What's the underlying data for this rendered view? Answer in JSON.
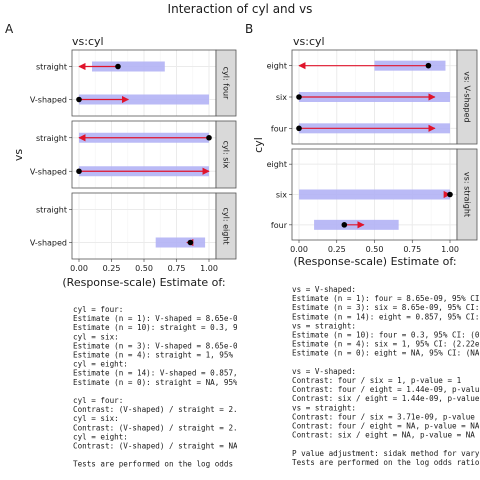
{
  "title": "Interaction of cyl and vs",
  "chart_data": [
    {
      "type": "scatter",
      "panel_tag": "A",
      "by_label": "vs:cyl",
      "facet_dir": "rows",
      "xlabel": "(Response-scale) Estimate of:",
      "ylabel": "vs",
      "xlim": [
        0,
        1
      ],
      "xticks": [
        0,
        0.25,
        0.5,
        0.75,
        1
      ],
      "xtick_labels": [
        "0.00",
        "0.25",
        "0.50",
        "0.75",
        "1.00"
      ],
      "grid": true,
      "facets": [
        {
          "strip": "cyl: four",
          "levels": [
            "V-shaped",
            "straight"
          ],
          "estimates": [
            {
              "level": "straight",
              "est": 0.3,
              "ci": [
                0.1,
                0.66
              ]
            },
            {
              "level": "V-shaped",
              "est": 0.0,
              "ci": [
                0.0,
                1.0
              ]
            }
          ],
          "arrows": [
            {
              "level": "straight",
              "from": 0.3,
              "to": 0.0
            },
            {
              "level": "V-shaped",
              "from": 0.0,
              "to": 0.38
            }
          ]
        },
        {
          "strip": "cyl: six",
          "levels": [
            "V-shaped",
            "straight"
          ],
          "estimates": [
            {
              "level": "straight",
              "est": 1.0,
              "ci": [
                0.0,
                1.0
              ]
            },
            {
              "level": "V-shaped",
              "est": 0.0,
              "ci": [
                0.0,
                1.0
              ]
            }
          ],
          "arrows": [
            {
              "level": "straight",
              "from": 1.0,
              "to": 0.0
            },
            {
              "level": "V-shaped",
              "from": 0.0,
              "to": 1.0
            }
          ]
        },
        {
          "strip": "cyl: eight",
          "levels": [
            "V-shaped",
            "straight"
          ],
          "estimates": [
            {
              "level": "V-shaped",
              "est": 0.857,
              "ci": [
                0.59,
                0.97
              ]
            }
          ],
          "arrows": [
            {
              "level": "V-shaped",
              "from": 0.857,
              "to": 0.83
            }
          ]
        }
      ]
    },
    {
      "type": "scatter",
      "panel_tag": "B",
      "by_label": "vs:cyl",
      "facet_dir": "cols",
      "xlabel": "(Response-scale) Estimate of:",
      "ylabel": "cyl",
      "xlim": [
        0,
        1
      ],
      "xticks": [
        0,
        0.25,
        0.5,
        0.75,
        1
      ],
      "xtick_labels": [
        "0.00",
        "0.25",
        "0.50",
        "0.75",
        "1.00"
      ],
      "grid": true,
      "facets": [
        {
          "strip": "vs: V-shaped",
          "levels": [
            "four",
            "six",
            "eight"
          ],
          "estimates": [
            {
              "level": "eight",
              "est": 0.857,
              "ci": [
                0.5,
                0.97
              ]
            },
            {
              "level": "six",
              "est": 0.0,
              "ci": [
                0.0,
                1.0
              ]
            },
            {
              "level": "four",
              "est": 0.0,
              "ci": [
                0.0,
                1.0
              ]
            }
          ],
          "arrows": [
            {
              "level": "eight",
              "from": 0.857,
              "to": 0.0
            },
            {
              "level": "six",
              "from": 0.0,
              "to": 0.9
            },
            {
              "level": "four",
              "from": 0.0,
              "to": 0.9
            }
          ]
        },
        {
          "strip": "vs: straight",
          "levels": [
            "four",
            "six",
            "eight"
          ],
          "estimates": [
            {
              "level": "six",
              "est": 1.0,
              "ci": [
                0.0,
                1.0
              ]
            },
            {
              "level": "four",
              "est": 0.3,
              "ci": [
                0.1,
                0.66
              ]
            }
          ],
          "arrows": [
            {
              "level": "six",
              "from": 1.0,
              "to": 1.0
            },
            {
              "level": "four",
              "from": 0.3,
              "to": 0.43
            }
          ]
        }
      ]
    }
  ],
  "text_a": [
    "cyl = four:",
    "Estimate (n = 1): V-shaped = 8.65e-09, 95",
    "Estimate (n = 10): straight = 0.3, 95% CI:",
    "cyl = six:",
    "Estimate (n = 3): V-shaped = 8.65e-09, 95",
    "Estimate (n = 4): straight = 1, 95% CI: (2.2",
    "cyl = eight:",
    "Estimate (n = 14): V-shaped = 0.857, 95% C",
    "Estimate (n = 0): straight = NA, 95% CI: (N",
    "",
    "cyl = four:",
    "Contrast: (V-shaped) / straight = 2.02e-08,",
    "cyl = six:",
    "Contrast: (V-shaped) / straight = 2.22e-08,",
    "cyl = eight:",
    "Contrast: (V-shaped) / straight = NA, p-valu",
    "",
    "Tests are performed on the log odds ratio s"
  ],
  "text_b": [
    "vs = V-shaped:",
    "Estimate (n = 1): four = 8.65e-09, 95% CI: (0",
    "Estimate (n = 3): six = 8.65e-09, 95% CI: (0,",
    "Estimate (n = 14): eight = 0.857, 95% CI: (0.5",
    "vs = straight:",
    "Estimate (n = 10): four = 0.3, 95% CI: (0.0",
    "Estimate (n = 4): six = 1, 95% CI: (2.22e-1",
    "Estimate (n = 0): eight = NA, 95% CI: (NA,",
    "",
    "vs = V-shaped:",
    "Contrast: four / six = 1, p-value = 1",
    "Contrast: four / eight = 1.44e-09, p-value = 2",
    "Contrast: six / eight = 1.44e-09, p-value = 2",
    "vs = straight:",
    "Contrast: four / six = 3.71e-09, p-value = 0.9",
    "Contrast: four / eight = NA, p-value = NA",
    "Contrast: six / eight = NA, p-value = NA",
    "",
    "P value adjustment: sidak method for vary",
    "Tests are performed on the log odds ratio sc"
  ],
  "colors": {
    "ci_band": "#b3b3f5",
    "arrow": "#e0142b",
    "point": "#000000",
    "panel_border": "#555555",
    "grid": "#ebebeb",
    "strip_bg": "#d9d9d9"
  }
}
